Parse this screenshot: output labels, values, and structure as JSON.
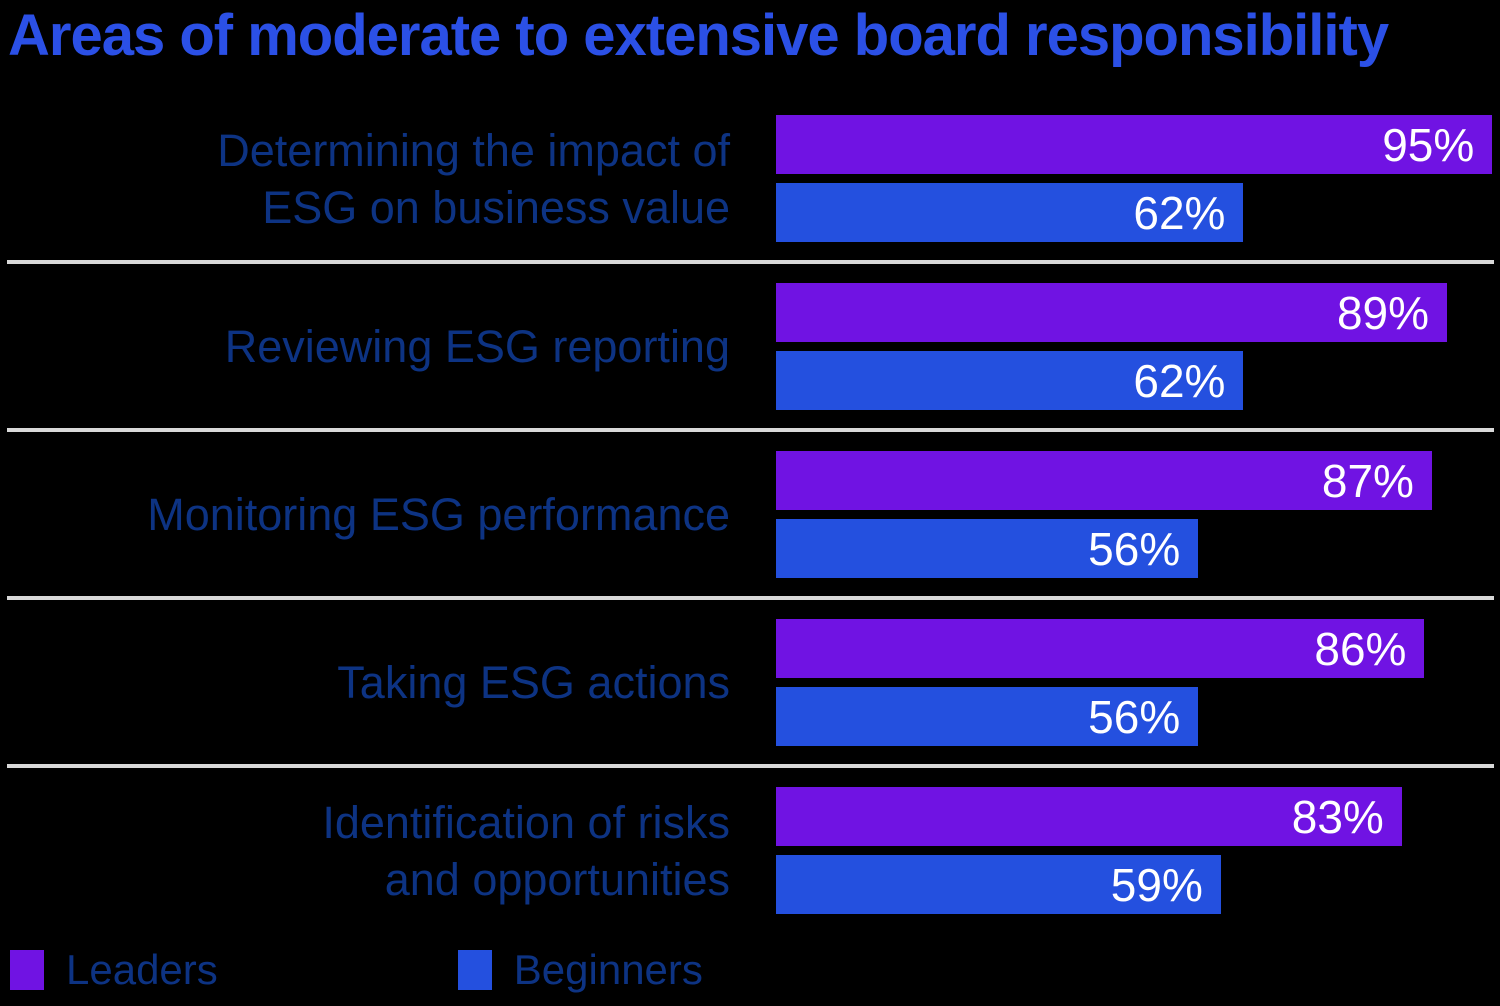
{
  "title": "Areas of moderate to extensive board responsibility",
  "colors": {
    "background": "#000000",
    "title_text": "#2b50e6",
    "category_label": "#0d3383",
    "leaders": "#7013e3",
    "beginners": "#2450df",
    "value_text": "#ffffff",
    "separator": "#d9d9d9"
  },
  "legend": {
    "leaders_label": "Leaders",
    "beginners_label": "Beginners",
    "position": "bottom-left"
  },
  "chart_data": {
    "type": "bar",
    "orientation": "horizontal",
    "title": "Areas of moderate to extensive board responsibility",
    "xlabel": "",
    "ylabel": "",
    "xlim": [
      0,
      100
    ],
    "grid": false,
    "value_label_format": "percent",
    "categories": [
      "Determining the impact of ESG on business value",
      "Reviewing ESG reporting",
      "Monitoring ESG performance",
      "Taking ESG actions",
      "Identification of risks and opportunities"
    ],
    "series": [
      {
        "name": "Leaders",
        "color": "#7013e3",
        "values": [
          95,
          89,
          87,
          86,
          83
        ]
      },
      {
        "name": "Beginners",
        "color": "#2450df",
        "values": [
          62,
          62,
          56,
          56,
          59
        ]
      }
    ],
    "rows": [
      {
        "category": "Determining the impact of\nESG on business value",
        "leaders": "95%",
        "beginners": "62%"
      },
      {
        "category": "Reviewing ESG reporting",
        "leaders": "89%",
        "beginners": "62%"
      },
      {
        "category": "Monitoring ESG performance",
        "leaders": "87%",
        "beginners": "56%"
      },
      {
        "category": "Taking ESG actions",
        "leaders": "86%",
        "beginners": "56%"
      },
      {
        "category": "Identification of risks\nand opportunities",
        "leaders": "83%",
        "beginners": "59%"
      }
    ]
  }
}
